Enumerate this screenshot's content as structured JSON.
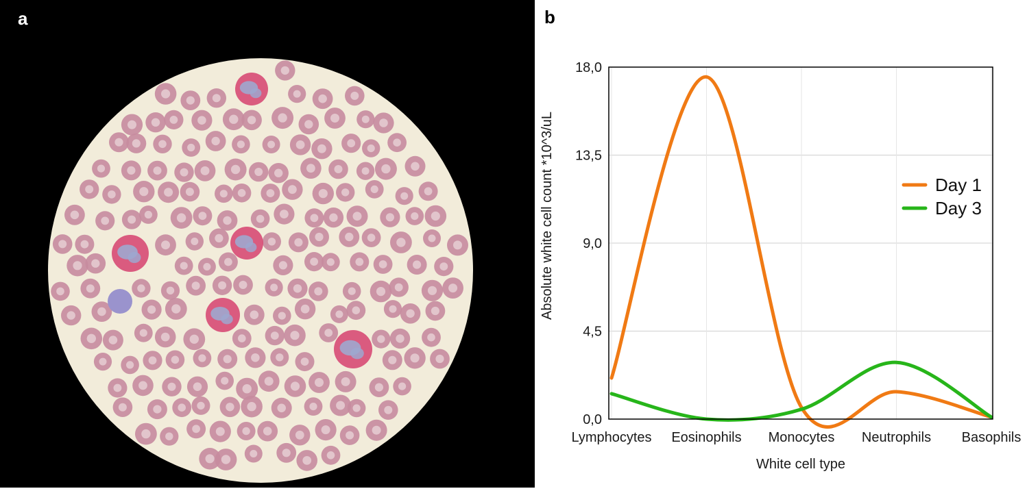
{
  "panels": {
    "a_label": "a",
    "b_label": "b"
  },
  "micrograph": {
    "background_color": "#000000",
    "field_color": "#f2ecda",
    "rbc_color": "#c78b9f",
    "rbc_center_color": "#ead5d9",
    "eosinophil_granule_color": "#d6426f",
    "nucleus_color": "#9ea7cf",
    "lymphocyte_color": "#9a93cd"
  },
  "chart_data": {
    "type": "line",
    "title": "",
    "xlabel": "White cell type",
    "ylabel": "Absolute  white cell count *10^3/uL",
    "categories": [
      "Lymphocytes",
      "Eosinophils",
      "Monocytes",
      "Neutrophils",
      "Basophils"
    ],
    "ylim": [
      0,
      18
    ],
    "yticks": [
      "0,0",
      "4,5",
      "9,0",
      "13,5",
      "18,0"
    ],
    "ytick_values": [
      0,
      4.5,
      9,
      13.5,
      18
    ],
    "grid": true,
    "legend_position": "right",
    "series": [
      {
        "name": "Day 1",
        "color": "#f07a14",
        "values": [
          2.1,
          17.5,
          0.6,
          1.4,
          0.1
        ]
      },
      {
        "name": "Day 3",
        "color": "#27b51a",
        "values": [
          1.3,
          0.0,
          0.5,
          2.9,
          0.1
        ]
      }
    ]
  }
}
